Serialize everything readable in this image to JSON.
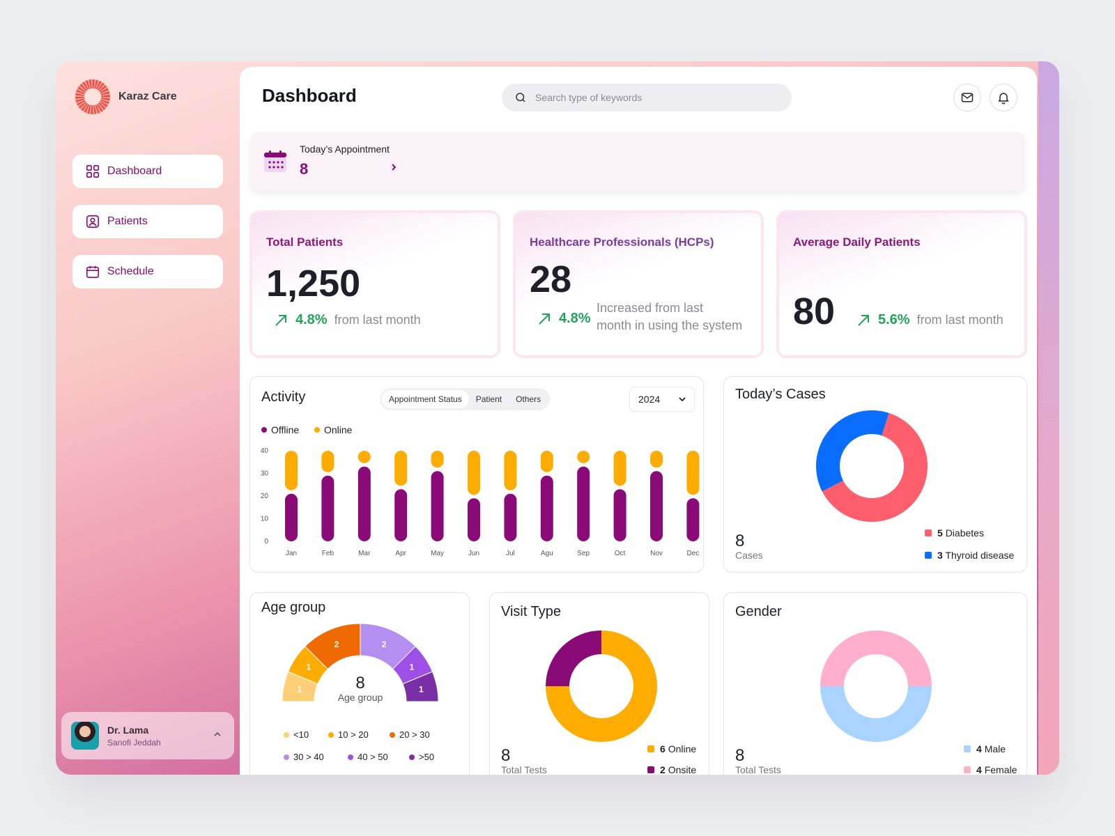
{
  "brand": {
    "name": "Karaz Care"
  },
  "nav": [
    {
      "label": "Dashboard",
      "icon": "grid-icon"
    },
    {
      "label": "Patients",
      "icon": "user-square-icon"
    },
    {
      "label": "Schedule",
      "icon": "calendar-icon"
    }
  ],
  "user": {
    "name": "Dr. Lama",
    "org": "Sanofi Jeddah"
  },
  "header": {
    "title": "Dashboard",
    "search_placeholder": "Search type of keywords"
  },
  "appointment": {
    "label": "Today’s Appointment",
    "value": "8"
  },
  "stats": {
    "total_patients": {
      "title": "Total Patients",
      "value": "1,250",
      "change": "4.8%",
      "note": "from last month"
    },
    "hcps": {
      "title": "Healthcare Professionals (HCPs)",
      "value": "28",
      "change": "4.8%",
      "note_line1": "Increased from last",
      "note_line2": "month in using the system"
    },
    "avg_daily": {
      "title": "Average Daily Patients",
      "value": "80",
      "change": "5.6%",
      "note": "from last month"
    }
  },
  "activity": {
    "title": "Activity",
    "tabs": [
      "Appointment Status",
      "Patient",
      "Others"
    ],
    "year": "2024",
    "legend": {
      "offline": "Offline",
      "online": "Online"
    }
  },
  "todays_cases": {
    "title": "Today’s Cases",
    "total": "8",
    "total_label": "Cases",
    "items": [
      {
        "count": "5",
        "label": "Diabetes",
        "color": "#ff5f6d"
      },
      {
        "count": "3",
        "label": "Thyroid disease",
        "color": "#0a6dff"
      }
    ]
  },
  "age_group": {
    "title": "Age group",
    "total": "8",
    "total_label": "Age group",
    "legend": [
      "<10",
      "10 > 20",
      "20 > 30",
      "30 > 40",
      "40 > 50",
      ">50"
    ]
  },
  "visit_type": {
    "title": "Visit Type",
    "total": "8",
    "total_label": "Total Tests",
    "items": [
      {
        "count": "6",
        "label": "Online",
        "color": "#ffac00"
      },
      {
        "count": "2",
        "label": "Onsite",
        "color": "#8a0a78"
      }
    ]
  },
  "gender": {
    "title": "Gender",
    "total": "8",
    "total_label": "Total Tests",
    "items": [
      {
        "count": "4",
        "label": "Male",
        "color": "#a8d4ff"
      },
      {
        "count": "4",
        "label": "Female",
        "color": "#ffafcb"
      }
    ]
  },
  "chart_data": [
    {
      "type": "bar",
      "title": "Activity",
      "categories": [
        "Jan",
        "Feb",
        "Mar",
        "Apr",
        "May",
        "Jun",
        "Jul",
        "Agu",
        "Sep",
        "Oct",
        "Nov",
        "Dec"
      ],
      "series": [
        {
          "name": "Offline",
          "color": "#8a0a78",
          "values": [
            21,
            29,
            33,
            23,
            31,
            19,
            21,
            29,
            33,
            23,
            31,
            19
          ]
        },
        {
          "name": "Online",
          "color": "#ffac00",
          "values": [
            19,
            11,
            7,
            17,
            9,
            21,
            19,
            11,
            7,
            17,
            9,
            21
          ]
        }
      ],
      "ylim": [
        0,
        40
      ],
      "yticks": [
        0,
        10,
        20,
        30,
        40
      ]
    },
    {
      "type": "pie",
      "title": "Today’s Cases",
      "categories": [
        "Diabetes",
        "Thyroid disease"
      ],
      "values": [
        5,
        3
      ],
      "colors": [
        "#ff5f6d",
        "#0a6dff"
      ]
    },
    {
      "type": "pie",
      "title": "Age group",
      "categories": [
        "<10",
        "10 > 20",
        "20 > 30",
        "30 > 40",
        "40 > 50",
        ">50"
      ],
      "values": [
        1,
        1,
        2,
        2,
        1,
        1
      ],
      "colors": [
        "#ffcf78",
        "#ffac00",
        "#ef6a00",
        "#b48ef0",
        "#9e50e6",
        "#7a2fa6"
      ]
    },
    {
      "type": "pie",
      "title": "Visit Type",
      "categories": [
        "Online",
        "Onsite"
      ],
      "values": [
        6,
        2
      ],
      "colors": [
        "#ffac00",
        "#8a0a78"
      ]
    },
    {
      "type": "pie",
      "title": "Gender",
      "categories": [
        "Male",
        "Female"
      ],
      "values": [
        4,
        4
      ],
      "colors": [
        "#a8d4ff",
        "#ffafcb"
      ]
    }
  ]
}
